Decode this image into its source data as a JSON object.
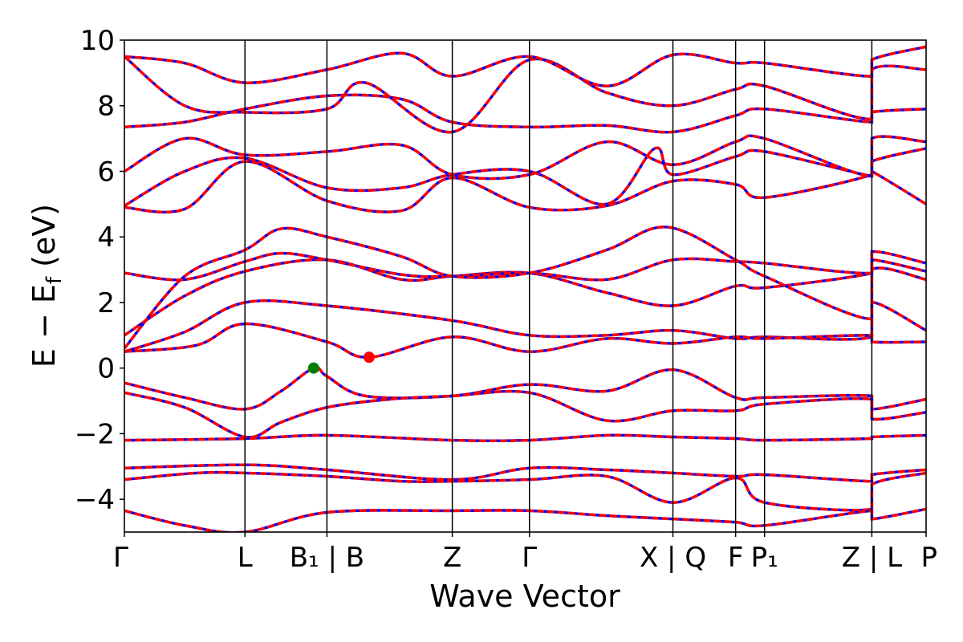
{
  "chart_data": {
    "type": "line",
    "xlabel": "Wave Vector",
    "ylabel": "E − E",
    "ylabel_sub": "f",
    "ylabel_unit": " (eV)",
    "ylim": [
      -5,
      10
    ],
    "yticks": [
      -4,
      -2,
      0,
      2,
      4,
      6,
      8,
      10
    ],
    "ytick_labels": [
      "−4",
      "−2",
      "0",
      "2",
      "4",
      "6",
      "8",
      "10"
    ],
    "xlim": [
      0,
      6.65
    ],
    "kpoints": [
      {
        "pos": 0.0,
        "label": "Γ"
      },
      {
        "pos": 1.0,
        "label": "L"
      },
      {
        "pos": 1.68,
        "label": "B₁ | B"
      },
      {
        "pos": 2.72,
        "label": "Z"
      },
      {
        "pos": 3.36,
        "label": "Γ"
      },
      {
        "pos": 4.55,
        "label": "X | Q"
      },
      {
        "pos": 5.07,
        "label": "F"
      },
      {
        "pos": 5.31,
        "label": "P₁"
      },
      {
        "pos": 6.2,
        "label": "Z | L"
      },
      {
        "pos": 6.65,
        "label": "P"
      }
    ],
    "series_colors": {
      "bands_up": "#ff0000",
      "bands_down": "#0000ff"
    },
    "markers": [
      {
        "name": "VBM",
        "x": 1.57,
        "y": 0.0,
        "color": "#008000"
      },
      {
        "name": "CBM",
        "x": 2.03,
        "y": 0.33,
        "color": "#ff0000"
      }
    ],
    "bands": [
      {
        "x": [
          0,
          0.5,
          1.0,
          1.3,
          1.57,
          1.68,
          2.0,
          2.72,
          3.36,
          4.0,
          4.55,
          5.07,
          5.31,
          6.2,
          6.2,
          6.65
        ],
        "y": [
          -0.45,
          -0.9,
          -1.25,
          -0.7,
          0.0,
          -0.25,
          -0.85,
          -0.85,
          -0.5,
          -0.7,
          -0.05,
          -0.9,
          -0.9,
          -0.85,
          -1.25,
          -0.95
        ]
      },
      {
        "x": [
          0,
          0.5,
          1.0,
          1.3,
          1.68,
          2.2,
          2.72,
          3.36,
          4.0,
          4.55,
          5.07,
          5.31,
          6.2,
          6.2,
          6.65
        ],
        "y": [
          -0.75,
          -1.2,
          -2.1,
          -1.65,
          -1.2,
          -0.95,
          -0.85,
          -0.75,
          -1.6,
          -1.3,
          -1.3,
          -1.1,
          -0.95,
          -1.55,
          -1.35
        ]
      },
      {
        "x": [
          0,
          1.0,
          1.68,
          2.72,
          3.36,
          4.0,
          4.55,
          5.07,
          5.31,
          6.2,
          6.2,
          6.65
        ],
        "y": [
          -2.2,
          -2.15,
          -2.05,
          -2.2,
          -2.2,
          -2.05,
          -2.1,
          -2.15,
          -2.2,
          -2.15,
          -2.1,
          -2.05
        ]
      },
      {
        "x": [
          0,
          1.0,
          1.68,
          2.72,
          3.36,
          4.0,
          4.55,
          5.07,
          5.31,
          6.2,
          6.2,
          6.65
        ],
        "y": [
          -3.05,
          -2.95,
          -3.1,
          -3.4,
          -3.05,
          -3.1,
          -3.2,
          -3.3,
          -3.25,
          -3.45,
          -3.25,
          -3.1
        ]
      },
      {
        "x": [
          0,
          0.6,
          1.0,
          1.68,
          2.3,
          2.72,
          3.36,
          4.0,
          4.55,
          5.07,
          5.31,
          6.2,
          6.2,
          6.65
        ],
        "y": [
          -3.4,
          -3.2,
          -3.2,
          -3.3,
          -3.45,
          -3.45,
          -3.4,
          -3.3,
          -4.1,
          -3.35,
          -4.1,
          -4.3,
          -3.55,
          -3.2
        ]
      },
      {
        "x": [
          0,
          0.5,
          1.0,
          1.68,
          2.72,
          3.36,
          4.0,
          4.55,
          5.07,
          5.31,
          6.2,
          6.2,
          6.65
        ],
        "y": [
          -4.35,
          -4.8,
          -5.0,
          -4.4,
          -4.35,
          -4.35,
          -4.5,
          -4.6,
          -4.7,
          -4.8,
          -4.35,
          -4.6,
          -4.3
        ]
      },
      {
        "x": [
          0,
          0.5,
          1.0,
          1.68,
          2.72,
          3.36,
          4.0,
          4.55,
          5.07,
          5.31,
          6.2,
          6.2,
          6.65
        ],
        "y": [
          0.5,
          1.1,
          2.0,
          1.9,
          1.45,
          1.0,
          1.0,
          1.15,
          0.9,
          0.95,
          0.95,
          2.0,
          1.15
        ]
      },
      {
        "x": [
          0,
          0.6,
          1.0,
          1.68,
          2.03,
          2.72,
          3.36,
          4.0,
          4.55,
          5.07,
          5.31,
          6.2,
          6.2,
          6.65
        ],
        "y": [
          0.5,
          0.7,
          1.35,
          0.8,
          0.33,
          0.95,
          0.5,
          0.9,
          0.75,
          0.95,
          0.9,
          1.0,
          0.8,
          0.8
        ]
      },
      {
        "x": [
          0,
          0.5,
          1.0,
          1.68,
          2.3,
          2.72,
          3.36,
          4.0,
          4.55,
          5.07,
          5.31,
          6.2,
          6.2,
          6.65
        ],
        "y": [
          1.0,
          2.2,
          2.95,
          3.3,
          2.7,
          2.8,
          2.9,
          2.3,
          1.9,
          2.5,
          2.45,
          2.9,
          3.3,
          2.95
        ]
      },
      {
        "x": [
          0,
          0.5,
          1.0,
          1.3,
          1.68,
          2.3,
          2.72,
          3.36,
          4.0,
          4.55,
          5.07,
          5.31,
          6.2,
          6.2,
          6.65
        ],
        "y": [
          2.9,
          2.7,
          3.25,
          3.5,
          3.3,
          2.85,
          2.8,
          2.9,
          2.7,
          3.3,
          3.25,
          3.2,
          2.9,
          3.55,
          3.2
        ]
      },
      {
        "x": [
          0,
          0.5,
          1.0,
          1.3,
          1.68,
          2.3,
          2.72,
          3.36,
          4.0,
          4.5,
          5.07,
          5.31,
          6.2,
          6.2,
          6.65
        ],
        "y": [
          0.6,
          2.8,
          3.6,
          4.25,
          4.0,
          3.4,
          2.8,
          2.9,
          3.6,
          4.3,
          3.3,
          2.8,
          1.5,
          3.0,
          2.7
        ]
      },
      {
        "x": [
          0,
          0.5,
          1.0,
          1.68,
          2.3,
          2.72,
          3.36,
          4.0,
          4.55,
          5.07,
          5.31,
          6.2,
          6.2,
          6.65
        ],
        "y": [
          4.9,
          4.85,
          6.3,
          5.1,
          4.8,
          5.8,
          4.9,
          4.95,
          5.7,
          5.6,
          5.2,
          5.9,
          6.3,
          6.7
        ]
      },
      {
        "x": [
          0,
          0.5,
          1.0,
          1.68,
          2.3,
          2.72,
          3.36,
          4.0,
          4.4,
          4.55,
          5.07,
          5.31,
          6.2,
          6.2,
          6.65
        ],
        "y": [
          4.95,
          6.0,
          6.4,
          5.5,
          5.5,
          5.9,
          6.0,
          5.0,
          6.7,
          5.9,
          6.45,
          6.6,
          5.85,
          6.0,
          5.0
        ]
      },
      {
        "x": [
          0,
          0.5,
          1.0,
          1.68,
          2.3,
          2.72,
          3.36,
          4.0,
          4.55,
          5.07,
          5.31,
          6.2,
          6.2,
          6.65
        ],
        "y": [
          6.0,
          7.0,
          6.5,
          6.6,
          6.8,
          5.9,
          5.9,
          6.9,
          6.2,
          6.9,
          7.0,
          5.85,
          7.0,
          6.9
        ]
      },
      {
        "x": [
          0,
          0.5,
          1.0,
          1.68,
          2.3,
          2.72,
          3.36,
          4.0,
          4.55,
          5.07,
          5.31,
          6.2,
          6.2,
          6.65
        ],
        "y": [
          7.35,
          7.5,
          7.9,
          8.3,
          8.2,
          7.5,
          7.35,
          7.4,
          7.2,
          7.7,
          7.9,
          7.5,
          7.8,
          7.9
        ]
      },
      {
        "x": [
          0,
          0.5,
          1.0,
          1.68,
          2.0,
          2.72,
          3.36,
          4.0,
          4.55,
          5.07,
          5.31,
          6.2,
          6.2,
          6.65
        ],
        "y": [
          9.5,
          8.0,
          7.8,
          7.9,
          8.7,
          7.2,
          9.4,
          8.4,
          8.0,
          8.5,
          8.6,
          7.6,
          9.1,
          9.1
        ]
      },
      {
        "x": [
          0,
          0.5,
          1.0,
          1.68,
          2.3,
          2.72,
          3.36,
          4.0,
          4.55,
          5.07,
          5.31,
          6.2,
          6.2,
          6.65
        ],
        "y": [
          9.5,
          9.3,
          8.7,
          9.1,
          9.6,
          8.9,
          9.5,
          8.6,
          9.55,
          9.3,
          9.3,
          8.9,
          9.4,
          9.8
        ]
      }
    ]
  }
}
